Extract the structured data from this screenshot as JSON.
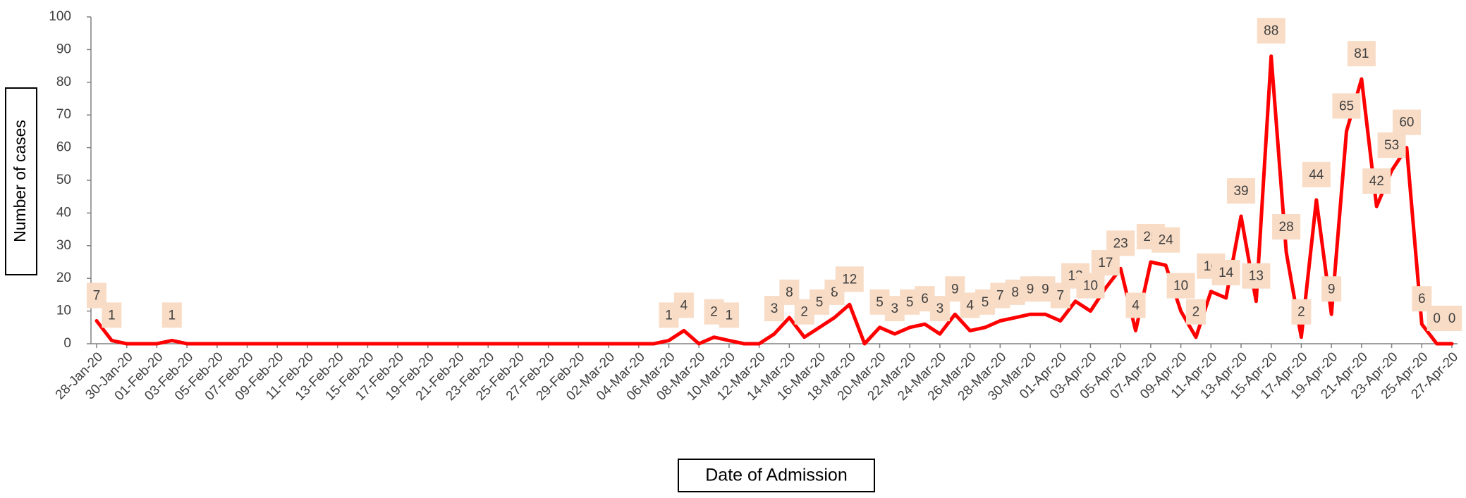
{
  "chart_data": {
    "type": "line",
    "xlabel": "Date of Admission",
    "ylabel": "Number of cases",
    "categories": [
      "28-Jan-20",
      null,
      "30-Jan-20",
      null,
      "01-Feb-20",
      null,
      "03-Feb-20",
      null,
      "05-Feb-20",
      null,
      "07-Feb-20",
      null,
      "09-Feb-20",
      null,
      "11-Feb-20",
      null,
      "13-Feb-20",
      null,
      "15-Feb-20",
      null,
      "17-Feb-20",
      null,
      "19-Feb-20",
      null,
      "21-Feb-20",
      null,
      "23-Feb-20",
      null,
      "25-Feb-20",
      null,
      "27-Feb-20",
      null,
      "29-Feb-20",
      null,
      "02-Mar-20",
      null,
      "04-Mar-20",
      null,
      "06-Mar-20",
      null,
      "08-Mar-20",
      null,
      "10-Mar-20",
      null,
      "12-Mar-20",
      null,
      "14-Mar-20",
      null,
      "16-Mar-20",
      null,
      "18-Mar-20",
      null,
      "20-Mar-20",
      null,
      "22-Mar-20",
      null,
      "24-Mar-20",
      null,
      "26-Mar-20",
      null,
      "28-Mar-20",
      null,
      "30-Mar-20",
      null,
      "01-Apr-20",
      null,
      "03-Apr-20",
      null,
      "05-Apr-20",
      null,
      "07-Apr-20",
      null,
      "09-Apr-20",
      null,
      "11-Apr-20",
      null,
      "13-Apr-20",
      null,
      "15-Apr-20",
      null,
      "17-Apr-20",
      null,
      "19-Apr-20",
      null,
      "21-Apr-20",
      null,
      "23-Apr-20",
      null,
      "25-Apr-20",
      null,
      "27-Apr-20"
    ],
    "series": [
      {
        "name": "Number of cases",
        "color": "#ff0000",
        "values": [
          7,
          1,
          0,
          0,
          0,
          1,
          0,
          0,
          0,
          0,
          0,
          0,
          0,
          0,
          0,
          0,
          0,
          0,
          0,
          0,
          0,
          0,
          0,
          0,
          0,
          0,
          0,
          0,
          0,
          0,
          0,
          0,
          0,
          0,
          0,
          0,
          0,
          0,
          1,
          4,
          0,
          2,
          1,
          0,
          0,
          3,
          8,
          2,
          5,
          8,
          12,
          0,
          5,
          3,
          5,
          6,
          3,
          9,
          4,
          5,
          7,
          8,
          9,
          9,
          7,
          13,
          10,
          17,
          23,
          4,
          25,
          24,
          10,
          2,
          16,
          14,
          39,
          13,
          88,
          28,
          2,
          44,
          9,
          65,
          81,
          42,
          53,
          60,
          6,
          0,
          0
        ]
      }
    ],
    "ylim": [
      0,
      100
    ],
    "yticks": [
      0,
      10,
      20,
      30,
      40,
      50,
      60,
      70,
      80,
      90,
      100
    ],
    "label_color": "#f8dcc6"
  }
}
